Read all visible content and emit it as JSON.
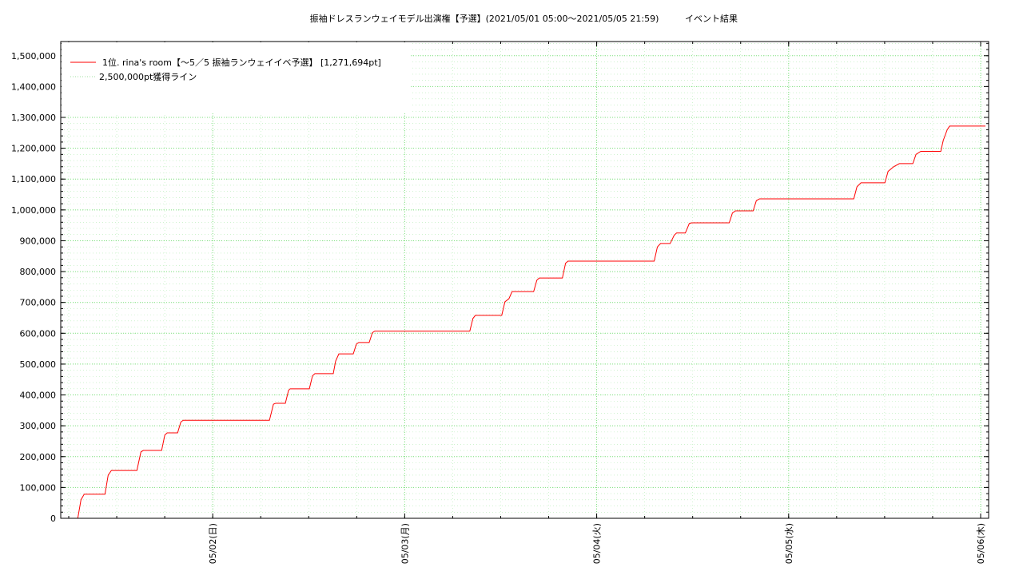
{
  "chart_data": {
    "type": "line",
    "title": "振袖ドレスランウェイモデル出演権【予選】(2021/05/01 05:00〜2021/05/05 21:59)",
    "subtitle": "イベント結果",
    "x": [
      7.13,
      7.53,
      7.93,
      10.53,
      10.93,
      11.33,
      14.52,
      15.02,
      15.32,
      17.61,
      18.01,
      18.31,
      19.61,
      20.01,
      20.31,
      31.09,
      31.59,
      31.88,
      33.08,
      33.48,
      33.68,
      36.08,
      36.47,
      36.77,
      39.07,
      39.37,
      39.77,
      41.57,
      41.96,
      42.26,
      43.56,
      43.96,
      44.26,
      56.14,
      56.53,
      56.83,
      60.13,
      60.53,
      61.03,
      61.42,
      64.12,
      64.52,
      64.82,
      67.71,
      68.11,
      68.41,
      79.19,
      79.59,
      79.99,
      81.19,
      81.69,
      81.99,
      83.08,
      83.58,
      83.88,
      88.57,
      88.97,
      89.37,
      91.56,
      91.96,
      92.36,
      104.14,
      104.54,
      105.04,
      108.03,
      108.43,
      109.13,
      109.83,
      111.52,
      111.92,
      112.52,
      115.02,
      115.32,
      115.82,
      116.12,
      120.6
    ],
    "series": [
      {
        "name": "1位. rina's room【〜5／5 振袖ランウェイイベ予選】 [1,271,694pt]",
        "color": "#ff0000",
        "values": [
          0,
          60000,
          78000,
          78000,
          140000,
          155000,
          155000,
          215000,
          220000,
          220000,
          270000,
          277000,
          277000,
          312000,
          318000,
          318000,
          370000,
          373000,
          373000,
          415000,
          420000,
          420000,
          462000,
          469000,
          469000,
          510000,
          533000,
          533000,
          565000,
          570000,
          570000,
          602000,
          607000,
          607000,
          648000,
          658000,
          658000,
          702000,
          712000,
          735000,
          735000,
          772000,
          779000,
          779000,
          827000,
          834000,
          834000,
          880000,
          891000,
          891000,
          918000,
          925000,
          925000,
          956000,
          958000,
          958000,
          990000,
          997000,
          997000,
          1030000,
          1036000,
          1036000,
          1075000,
          1088000,
          1088000,
          1125000,
          1140000,
          1150000,
          1150000,
          1180000,
          1190000,
          1190000,
          1225000,
          1260000,
          1271694,
          1271694
        ]
      }
    ],
    "reference_line": {
      "name": "2,500,000pt獲得ライン",
      "value": 2500000,
      "color": "#a0e0a0"
    },
    "xlim": [
      5,
      121
    ],
    "xticks": [
      {
        "value": 24,
        "label": "05/02(日)"
      },
      {
        "value": 48,
        "label": "05/03(月)"
      },
      {
        "value": 72,
        "label": "05/04(火)"
      },
      {
        "value": 96,
        "label": "05/05(水)"
      },
      {
        "value": 120,
        "label": "05/06(木)"
      }
    ],
    "ylim": [
      0,
      1546000
    ],
    "yticks": [
      0,
      {
        "value": 100000,
        "label": "100,000"
      },
      {
        "value": 200000,
        "label": "200,000"
      },
      {
        "value": 300000,
        "label": "300,000"
      },
      {
        "value": 400000,
        "label": "400,000"
      },
      {
        "value": 500000,
        "label": "500,000"
      },
      {
        "value": 600000,
        "label": "600,000"
      },
      {
        "value": 700000,
        "label": "700,000"
      },
      {
        "value": 800000,
        "label": "800,000"
      },
      {
        "value": 900000,
        "label": "900,000"
      },
      {
        "value": 1000000,
        "label": "1,000,000"
      },
      {
        "value": 1100000,
        "label": "1,100,000"
      },
      {
        "value": 1200000,
        "label": "1,200,000"
      },
      {
        "value": 1300000,
        "label": "1,300,000"
      },
      {
        "value": 1400000,
        "label": "1,400,000"
      },
      {
        "value": 1500000,
        "label": "1,500,000"
      }
    ],
    "grid": true,
    "grid_color": "#80e080",
    "minor_divisions": {
      "x": 4,
      "y": 5
    },
    "legend": "upper left"
  }
}
